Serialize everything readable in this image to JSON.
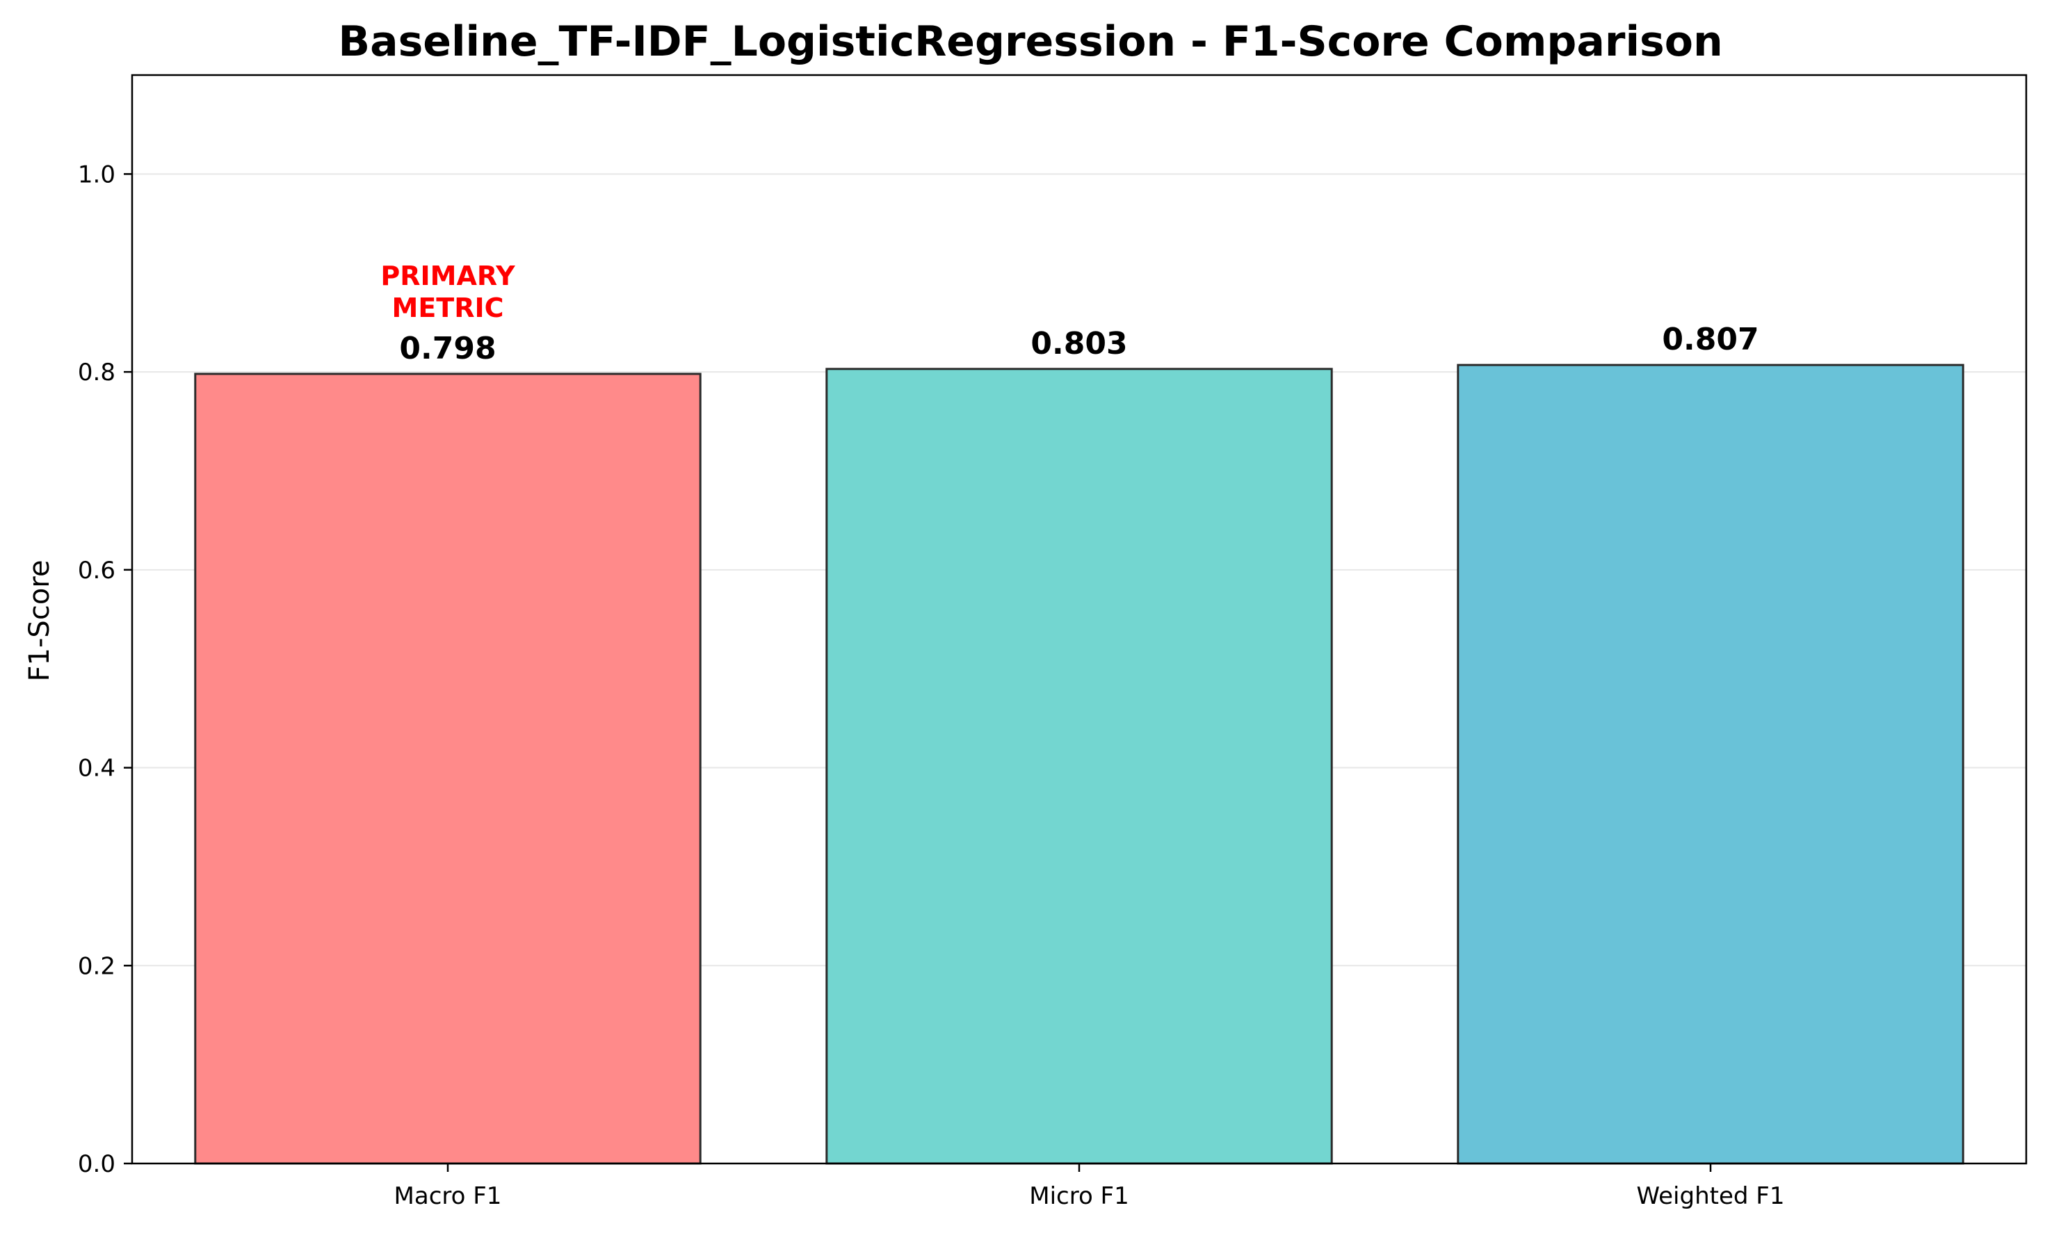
{
  "chart_data": {
    "type": "bar",
    "title": "Baseline_TF-IDF_LogisticRegression - F1-Score Comparison",
    "xlabel": "",
    "ylabel": "F1-Score",
    "categories": [
      "Macro F1",
      "Micro F1",
      "Weighted F1"
    ],
    "values": [
      0.798,
      0.803,
      0.807
    ],
    "value_labels": [
      "0.798",
      "0.803",
      "0.807"
    ],
    "colors": [
      "#ff8a8a",
      "#73d6d0",
      "#69c2d8"
    ],
    "edge_color": "#2a2a2a",
    "ylim": [
      0,
      1.1
    ],
    "yticks": [
      0.0,
      0.2,
      0.4,
      0.6,
      0.8,
      1.0
    ],
    "ytick_labels": [
      "0.0",
      "0.2",
      "0.4",
      "0.6",
      "0.8",
      "1.0"
    ],
    "grid": "y-axis",
    "annotations": [
      {
        "category": "Macro F1",
        "lines": [
          "PRIMARY",
          "METRIC"
        ],
        "color": "#ff0000"
      }
    ]
  }
}
